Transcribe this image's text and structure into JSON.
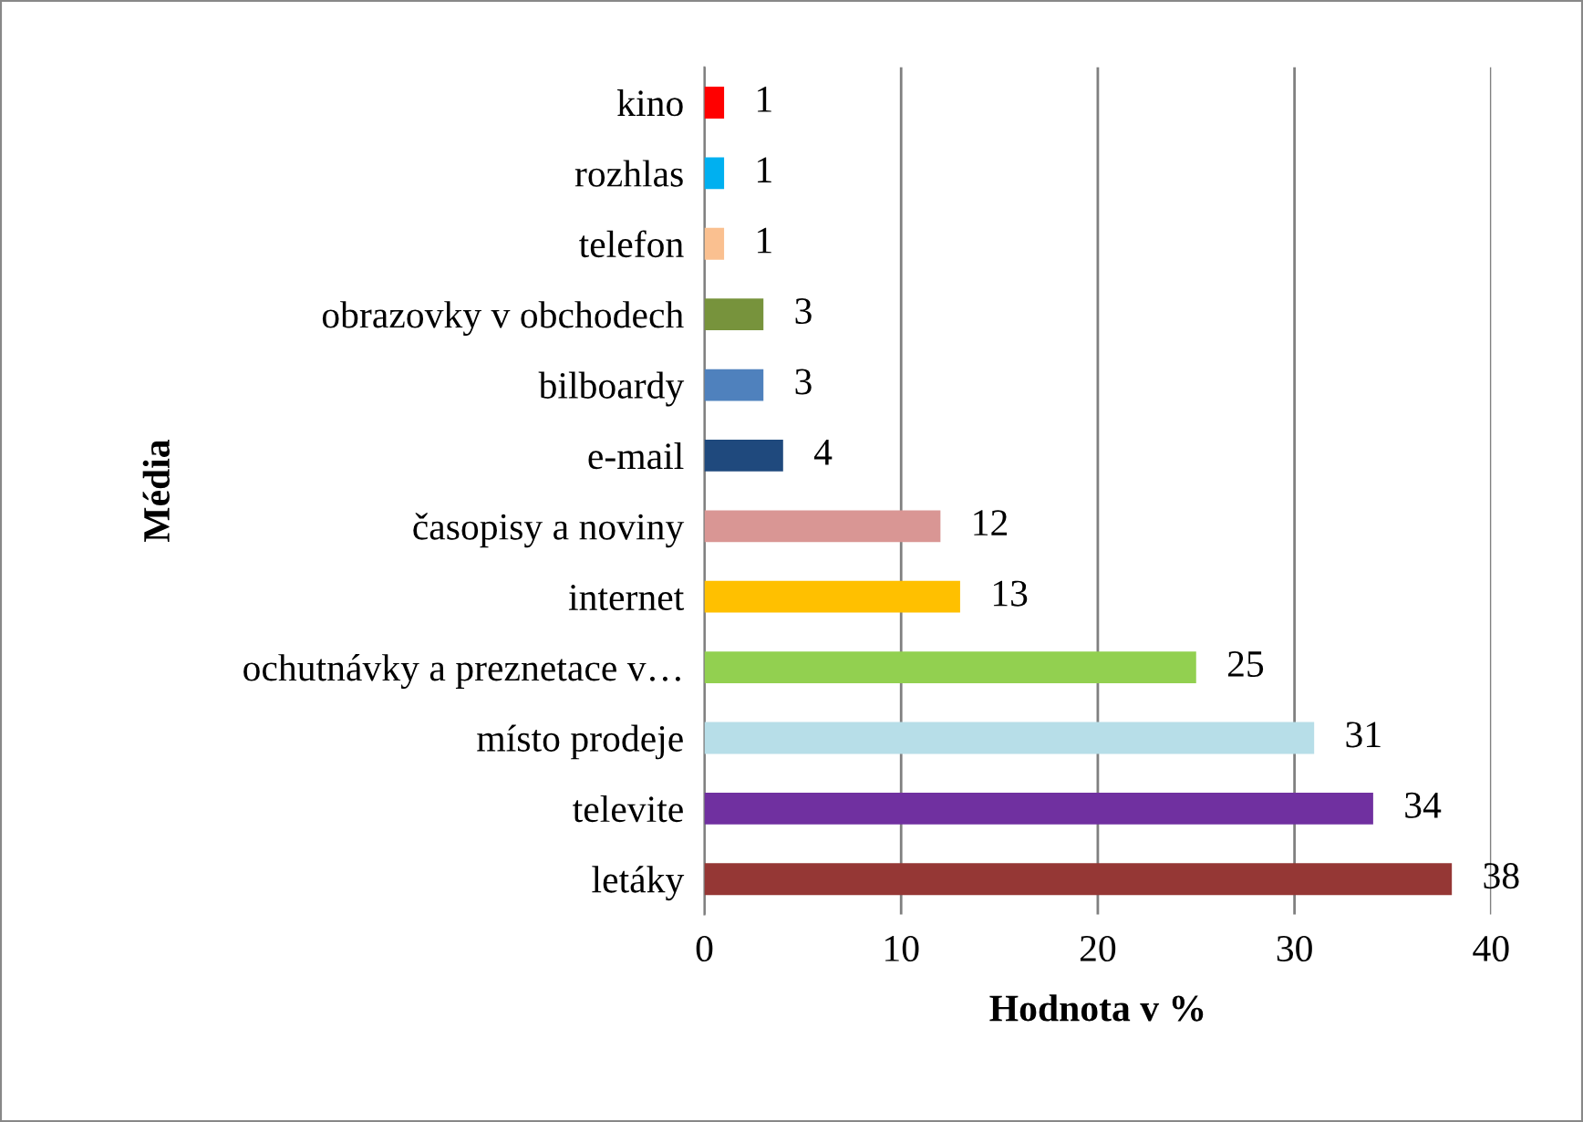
{
  "chart_data": {
    "type": "bar",
    "orientation": "horizontal",
    "xlabel": "Hodnota v %",
    "ylabel": "Média",
    "categories": [
      "kino",
      "rozhlas",
      "telefon",
      "obrazovky v obchodech",
      "bilboardy",
      "e-mail",
      "časopisy a noviny",
      "internet",
      "ochutnávky a preznetace v…",
      "místo prodeje",
      "televite",
      "letáky"
    ],
    "values": [
      1,
      1,
      1,
      3,
      3,
      4,
      12,
      13,
      25,
      31,
      34,
      38
    ],
    "colors": [
      "#ff0000",
      "#00b0f0",
      "#fac090",
      "#77933c",
      "#4f81bd",
      "#1f497d",
      "#d99694",
      "#ffc000",
      "#92d050",
      "#b7dee8",
      "#7030a0",
      "#953735"
    ],
    "xlim": [
      0,
      40
    ],
    "xticks": [
      0,
      10,
      20,
      30,
      40
    ],
    "grid": "x",
    "data_labels": true,
    "legend": false
  }
}
